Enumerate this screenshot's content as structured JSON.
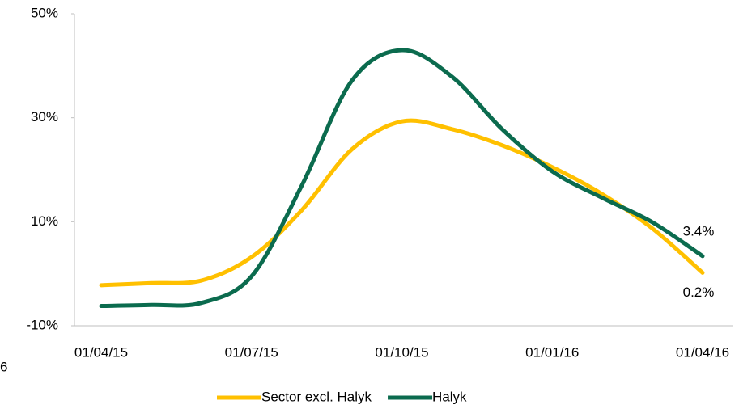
{
  "chart_data": {
    "type": "line",
    "categories": [
      "01/04/15",
      null,
      null,
      "01/07/15",
      null,
      null,
      "01/10/15",
      null,
      null,
      "01/01/16",
      null,
      null,
      "01/04/16"
    ],
    "series": [
      {
        "name": "Sector excl. Halyk",
        "color": "#ffc000",
        "values": [
          -2.2,
          -1.8,
          -1.3,
          3.2,
          12.2,
          23.9,
          29.3,
          27.8,
          24.7,
          20.5,
          15.3,
          8.7,
          0.2
        ],
        "value_labels": [
          null,
          null,
          null,
          null,
          null,
          null,
          null,
          null,
          null,
          null,
          null,
          null,
          "0.2%"
        ]
      },
      {
        "name": "Halyk",
        "color": "#0b6b4e",
        "values": [
          -6.2,
          -6.0,
          -5.6,
          -0.5,
          16.9,
          37.1,
          43.0,
          37.9,
          27.8,
          19.7,
          14.6,
          9.9,
          3.4
        ],
        "value_labels": [
          null,
          null,
          null,
          null,
          null,
          null,
          null,
          null,
          null,
          null,
          null,
          null,
          "3.4%"
        ]
      }
    ],
    "ylim": [
      -10,
      50
    ],
    "yticks": [
      {
        "value": -10,
        "label": "-10%"
      },
      {
        "value": 10,
        "label": "10%"
      },
      {
        "value": 30,
        "label": "30%"
      },
      {
        "value": 50,
        "label": "50%"
      }
    ],
    "annotations": [
      "6"
    ],
    "legend": "bottom"
  }
}
